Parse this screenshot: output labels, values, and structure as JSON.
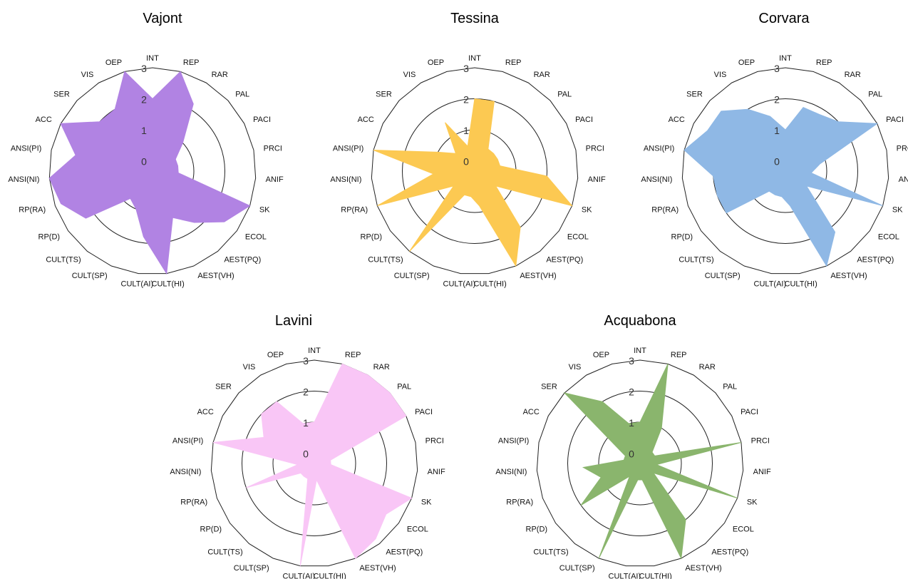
{
  "figure": {
    "axes": [
      "INT",
      "REP",
      "RAR",
      "PAL",
      "PACI",
      "PRCI",
      "ANIF",
      "SK",
      "ECOL",
      "AEST(PQ)",
      "AEST(VH)",
      "CULT(HI)",
      "CULT(AI)",
      "CULT(SP)",
      "CULT(TS)",
      "RP(D)",
      "RP(RA)",
      "ANSI(NI)",
      "ANSI(PI)",
      "ACC",
      "SER",
      "VIS",
      "OEP"
    ],
    "ticks": [
      "0",
      "1",
      "2",
      "3"
    ]
  },
  "chart_data": [
    {
      "type": "radar",
      "title": "Vajont",
      "color": "#b183e3",
      "rlim": [
        0,
        3
      ],
      "values": [
        2.0,
        3.0,
        2.2,
        1.0,
        0.5,
        0.5,
        0.5,
        3.0,
        2.5,
        1.8,
        1.3,
        3.0,
        1.8,
        1.0,
        0.8,
        2.3,
        2.8,
        3.0,
        2.2,
        3.0,
        2.0,
        2.0,
        3.0
      ]
    },
    {
      "type": "radar",
      "title": "Tessina",
      "color": "#fcc952",
      "rlim": [
        0,
        3
      ],
      "values": [
        2.0,
        2.0,
        0.5,
        0.5,
        0.5,
        0.5,
        2.0,
        3.0,
        0.5,
        2.0,
        3.0,
        0.8,
        0.5,
        0.5,
        3.0,
        0.5,
        3.0,
        1.0,
        3.0,
        1.0,
        0.5,
        1.5,
        0.5
      ]
    },
    {
      "type": "radar",
      "title": "Corvara",
      "color": "#8fb8e5",
      "rlim": [
        0,
        3
      ],
      "values": [
        1.0,
        1.8,
        1.8,
        2.0,
        3.0,
        0.8,
        0.5,
        3.0,
        0.5,
        2.2,
        3.0,
        0.8,
        0.5,
        0.5,
        0.5,
        2.0,
        2.0,
        2.0,
        3.0,
        2.5,
        2.5,
        2.0,
        1.5
      ]
    },
    {
      "type": "radar",
      "title": "Lavini",
      "color": "#f9c6f6",
      "rlim": [
        0,
        3
      ],
      "values": [
        1.0,
        3.0,
        3.0,
        3.0,
        3.0,
        0.2,
        0.2,
        3.0,
        2.5,
        2.8,
        3.0,
        0.2,
        3.0,
        0.2,
        0.2,
        0.2,
        2.0,
        0.2,
        3.0,
        1.5,
        2.0,
        2.0,
        1.0
      ]
    },
    {
      "type": "radar",
      "title": "Acquabona",
      "color": "#8ab56d",
      "rlim": [
        0,
        3
      ],
      "values": [
        1.0,
        3.0,
        1.0,
        0.2,
        0.2,
        3.0,
        0.2,
        3.0,
        0.2,
        2.0,
        3.0,
        0.2,
        0.2,
        3.0,
        0.2,
        2.0,
        1.0,
        1.5,
        0.2,
        0.2,
        3.0,
        2.0,
        1.0
      ]
    }
  ]
}
